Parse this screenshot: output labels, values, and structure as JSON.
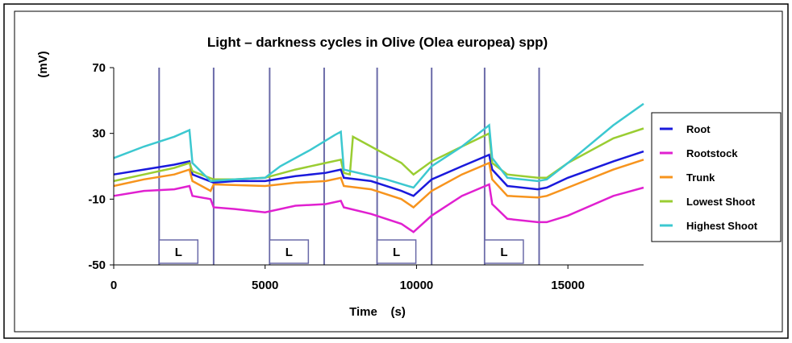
{
  "chart_data": {
    "type": "line",
    "title": "Light – darkness cycles in Olive (Olea europea) spp)",
    "xlabel": "Time    (s)",
    "ylabel": "(mV)",
    "xlim": [
      0,
      17500
    ],
    "xticks": [
      0,
      5000,
      10000,
      15000
    ],
    "ylim": [
      -50,
      70
    ],
    "yticks": [
      -50,
      -10,
      30,
      70
    ],
    "legend": "right",
    "light_periods": [
      {
        "start": 1500,
        "end": 3300,
        "label": "L"
      },
      {
        "start": 5150,
        "end": 6950,
        "label": "L"
      },
      {
        "start": 8700,
        "end": 10500,
        "label": "L"
      },
      {
        "start": 12250,
        "end": 14050,
        "label": "L"
      }
    ],
    "series": [
      {
        "name": "Root",
        "color": "#1a1adc",
        "x": [
          0,
          1000,
          2000,
          2500,
          2600,
          3300,
          4000,
          5000,
          6000,
          7000,
          7500,
          7600,
          8500,
          9500,
          9900,
          10500,
          11500,
          12400,
          12500,
          13000,
          14000,
          14300,
          15000,
          16500,
          17500
        ],
        "values": [
          5,
          8,
          11,
          13,
          5,
          0,
          1,
          1,
          4,
          6,
          8,
          3,
          1,
          -5,
          -8,
          2,
          10,
          17,
          8,
          -2,
          -4,
          -3,
          3,
          13,
          19
        ]
      },
      {
        "name": "Rootstock",
        "color": "#e020d0",
        "x": [
          0,
          1000,
          2000,
          2500,
          2600,
          3200,
          3300,
          4000,
          5000,
          6000,
          7000,
          7500,
          7600,
          8500,
          9500,
          9900,
          10500,
          11500,
          12400,
          12500,
          13000,
          14000,
          14300,
          15000,
          16500,
          17500
        ],
        "values": [
          -8,
          -5,
          -4,
          -2,
          -8,
          -10,
          -15,
          -16,
          -18,
          -14,
          -13,
          -11,
          -15,
          -19,
          -25,
          -30,
          -20,
          -8,
          -1,
          -13,
          -22,
          -24,
          -24,
          -20,
          -8,
          -3
        ]
      },
      {
        "name": "Trunk",
        "color": "#f7941d",
        "x": [
          0,
          1000,
          2000,
          2500,
          2600,
          3000,
          3200,
          3300,
          5000,
          6000,
          7000,
          7500,
          7600,
          8500,
          9500,
          9900,
          10500,
          11500,
          12400,
          12500,
          13000,
          14000,
          14300,
          15000,
          16500,
          17500
        ],
        "values": [
          -2,
          2,
          5,
          8,
          1,
          -3,
          -5,
          -1,
          -2,
          0,
          1,
          3,
          -2,
          -4,
          -10,
          -15,
          -5,
          5,
          12,
          2,
          -8,
          -9,
          -8,
          -3,
          8,
          14
        ]
      },
      {
        "name": "Lowest Shoot",
        "color": "#9acd32",
        "x": [
          0,
          1000,
          2000,
          2500,
          2600,
          3300,
          4000,
          5000,
          6000,
          7000,
          7500,
          7600,
          7800,
          7900,
          8500,
          9500,
          9900,
          10500,
          11500,
          12400,
          12500,
          13000,
          14000,
          14300,
          15000,
          16500,
          17500
        ],
        "values": [
          1,
          5,
          9,
          12,
          7,
          2,
          2,
          3,
          8,
          12,
          14,
          6,
          5,
          28,
          22,
          12,
          5,
          13,
          22,
          30,
          12,
          5,
          3,
          3,
          12,
          27,
          33
        ]
      },
      {
        "name": "Highest Shoot",
        "color": "#3cc8d0",
        "x": [
          0,
          1000,
          2000,
          2500,
          2600,
          3200,
          4000,
          5000,
          5500,
          6500,
          7300,
          7500,
          7600,
          9000,
          9900,
          10500,
          11500,
          12400,
          12500,
          13000,
          14000,
          14300,
          15000,
          16500,
          17500
        ],
        "values": [
          15,
          22,
          28,
          32,
          12,
          1,
          2,
          3,
          10,
          20,
          29,
          31,
          8,
          2,
          -3,
          10,
          22,
          35,
          15,
          3,
          1,
          2,
          12,
          35,
          48
        ]
      }
    ]
  }
}
